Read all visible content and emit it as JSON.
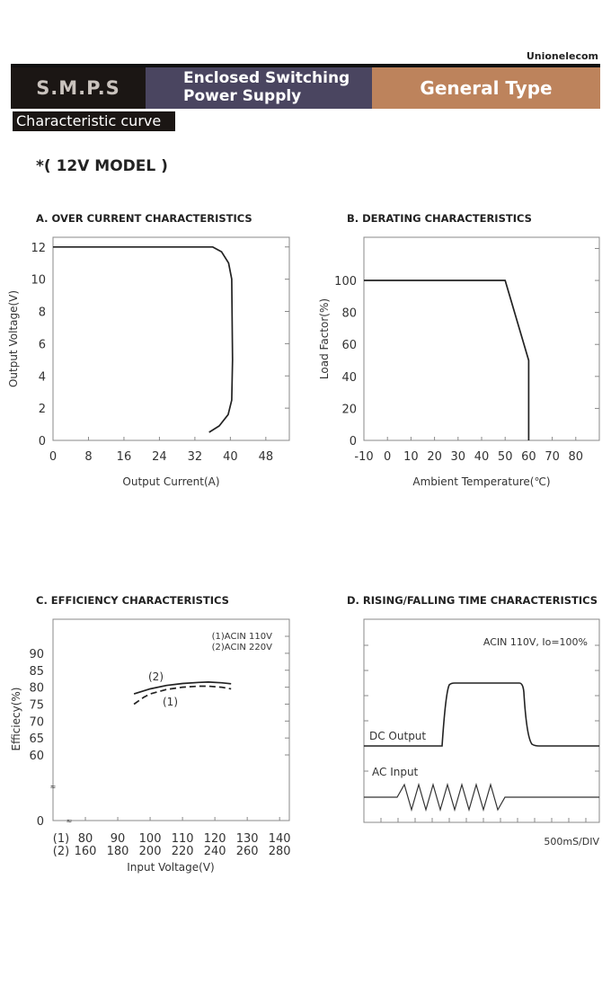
{
  "header": {
    "brand": "Unionelecom",
    "category": "S.M.P.S",
    "product_line1": "Enclosed Switching",
    "product_line2": "Power Supply",
    "type": "General Type",
    "section_tag": "Characteristic curve",
    "model": "*( 12V MODEL )",
    "colors": {
      "dark": "#1b1614",
      "purple": "#4a4560",
      "copper": "#bd835c"
    }
  },
  "chart_data": [
    {
      "type": "line",
      "title": "A. OVER CURRENT CHARACTERISTICS",
      "xlabel": "Output Current(A)",
      "ylabel": "Output Voltage(V)",
      "xticks": [
        "0",
        "8",
        "16",
        "24",
        "32",
        "40",
        "48"
      ],
      "yticks": [
        "0",
        "2",
        "4",
        "6",
        "8",
        "10",
        "12"
      ],
      "xlim": [
        0,
        53.3
      ],
      "ylim": [
        0,
        12.6
      ],
      "grid": false,
      "series": [
        {
          "x": [
            0,
            36,
            38,
            39.6,
            40.3,
            40.5,
            40.3,
            39.5,
            37.5,
            35.2
          ],
          "y": [
            12,
            12,
            11.7,
            11,
            10,
            5,
            2.5,
            1.6,
            0.9,
            0.5
          ]
        }
      ]
    },
    {
      "type": "line",
      "title": "B. DERATING CHARACTERISTICS",
      "xlabel": "Ambient Temperature(℃)",
      "ylabel": "Load Factor(%)",
      "xticks": [
        "-10",
        "0",
        "10",
        "20",
        "30",
        "40",
        "50",
        "60",
        "70",
        "80"
      ],
      "yticks": [
        "0",
        "20",
        "40",
        "60",
        "80",
        "100"
      ],
      "xlim": [
        -10,
        90
      ],
      "ylim": [
        0,
        127
      ],
      "grid": false,
      "series": [
        {
          "x": [
            -10,
            50,
            60,
            60
          ],
          "y": [
            100,
            100,
            50,
            0
          ]
        }
      ]
    },
    {
      "type": "line",
      "title": "C. EFFICIENCY CHARACTERISTICS",
      "xlabel": "Input Voltage(V)",
      "ylabel": "Efficiecy(%)",
      "xticks_1": [
        "(1)",
        "80",
        "90",
        "100",
        "110",
        "120",
        "130",
        "140"
      ],
      "xticks_2": [
        "(2)",
        "160",
        "180",
        "200",
        "220",
        "240",
        "260",
        "280"
      ],
      "yticks": [
        "0",
        "60",
        "65",
        "70",
        "75",
        "80",
        "85",
        "90"
      ],
      "xlim": [
        70,
        143
      ],
      "ylim": [
        60,
        100
      ],
      "axis_break": true,
      "grid": false,
      "legend": [
        "(1)ACIN 110V",
        "(2)ACIN 220V"
      ],
      "legend_position": "top-right",
      "series": [
        {
          "name": "(1)",
          "style": "dashed",
          "x": [
            95,
            98,
            100,
            105,
            110,
            115,
            118,
            122,
            125
          ],
          "y": [
            75,
            77,
            78,
            79.3,
            80,
            80.3,
            80.3,
            80,
            79.5
          ]
        },
        {
          "name": "(2)",
          "style": "solid",
          "x": [
            95,
            100,
            105,
            110,
            115,
            118,
            122,
            125
          ],
          "y": [
            78,
            79.5,
            80.5,
            81.1,
            81.4,
            81.5,
            81.3,
            81
          ]
        }
      ]
    },
    {
      "type": "line",
      "title": "D. RISING/FALLING TIME CHARACTERISTICS",
      "annotation": "ACIN 110V, Io=100%",
      "xlabel": "500mS/DIV",
      "trace_labels": [
        "DC Output",
        "AC Input"
      ],
      "grid": false
    }
  ]
}
